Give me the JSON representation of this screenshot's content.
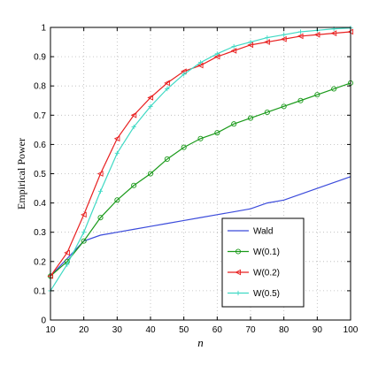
{
  "chart_data": {
    "type": "line",
    "title": "",
    "xlabel": "n",
    "ylabel": "Empirical Power",
    "xlim": [
      10,
      100
    ],
    "ylim": [
      0,
      1
    ],
    "x_ticks": [
      10,
      20,
      30,
      40,
      50,
      60,
      70,
      80,
      90,
      100
    ],
    "y_ticks": [
      0,
      0.1,
      0.2,
      0.3,
      0.4,
      0.5,
      0.6,
      0.7,
      0.8,
      0.9,
      1
    ],
    "x_tick_labels": [
      "10",
      "20",
      "30",
      "40",
      "50",
      "60",
      "70",
      "80",
      "90",
      "100"
    ],
    "y_tick_labels": [
      "0",
      "0.1",
      "0.2",
      "0.3",
      "0.4",
      "0.5",
      "0.6",
      "0.7",
      "0.8",
      "0.9",
      "1"
    ],
    "grid": true,
    "legend_position": "lower-right",
    "x": [
      10,
      15,
      20,
      25,
      30,
      35,
      40,
      45,
      50,
      55,
      60,
      65,
      70,
      75,
      80,
      85,
      90,
      95,
      100
    ],
    "series": [
      {
        "name": "Wald",
        "color": "#3b4bdb",
        "marker": "none",
        "values": [
          0.15,
          0.21,
          0.27,
          0.29,
          0.3,
          0.31,
          0.32,
          0.33,
          0.34,
          0.35,
          0.36,
          0.37,
          0.38,
          0.4,
          0.41,
          0.43,
          0.45,
          0.47,
          0.49
        ]
      },
      {
        "name": "W(0.1)",
        "color": "#1a9a1a",
        "marker": "circle",
        "values": [
          0.15,
          0.2,
          0.27,
          0.35,
          0.41,
          0.46,
          0.5,
          0.55,
          0.59,
          0.62,
          0.64,
          0.67,
          0.69,
          0.71,
          0.73,
          0.75,
          0.77,
          0.79,
          0.81
        ]
      },
      {
        "name": "W(0.2)",
        "color": "#e82020",
        "marker": "triangle-left",
        "values": [
          0.15,
          0.23,
          0.36,
          0.5,
          0.62,
          0.7,
          0.76,
          0.81,
          0.85,
          0.87,
          0.9,
          0.92,
          0.94,
          0.95,
          0.96,
          0.97,
          0.975,
          0.98,
          0.985
        ]
      },
      {
        "name": "W(0.5)",
        "color": "#3fd9c4",
        "marker": "plus",
        "values": [
          0.1,
          0.19,
          0.3,
          0.44,
          0.57,
          0.66,
          0.73,
          0.79,
          0.84,
          0.88,
          0.91,
          0.935,
          0.95,
          0.965,
          0.975,
          0.985,
          0.99,
          0.995,
          0.998
        ]
      }
    ]
  }
}
